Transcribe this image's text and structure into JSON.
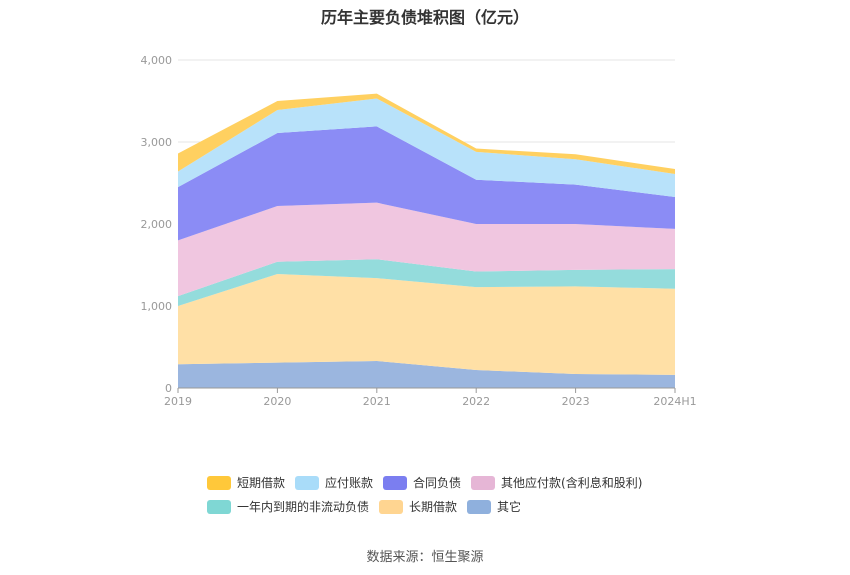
{
  "chart_data": {
    "type": "area",
    "stacked": true,
    "title": "历年主要负债堆积图（亿元）",
    "categories": [
      "2019",
      "2020",
      "2021",
      "2022",
      "2023",
      "2024H1"
    ],
    "y_ticks": [
      "0",
      "1,000",
      "2,000",
      "3,000",
      "4,000"
    ],
    "ylim": [
      0,
      4000
    ],
    "grid": true,
    "legend_position": "bottom",
    "series": [
      {
        "name": "其它",
        "color": "#9bb6df",
        "values": [
          290,
          310,
          330,
          220,
          170,
          160
        ]
      },
      {
        "name": "长期借款",
        "color": "#ffe0a6",
        "values": [
          710,
          1080,
          1010,
          1010,
          1070,
          1050
        ]
      },
      {
        "name": "一年内到期的非流动负债",
        "color": "#94dcdc",
        "values": [
          120,
          150,
          230,
          190,
          200,
          240
        ]
      },
      {
        "name": "其他应付款(含利息和股利)",
        "color": "#f0c6e0",
        "values": [
          680,
          680,
          690,
          580,
          560,
          490
        ]
      },
      {
        "name": "合同负债",
        "color": "#8b8cf5",
        "values": [
          650,
          890,
          930,
          540,
          480,
          390
        ]
      },
      {
        "name": "应付账款",
        "color": "#b8e2fa",
        "values": [
          190,
          280,
          340,
          340,
          310,
          280
        ]
      },
      {
        "name": "短期借款",
        "color": "#ffd060",
        "values": [
          220,
          110,
          60,
          40,
          60,
          60
        ]
      }
    ]
  },
  "legend": {
    "row1": [
      {
        "label": "短期借款",
        "color": "#ffc83a"
      },
      {
        "label": "应付账款",
        "color": "#a9dcf9"
      },
      {
        "label": "合同负债",
        "color": "#7b7ef0"
      },
      {
        "label": "其他应付款(含利息和股利)",
        "color": "#e6b6d6"
      }
    ],
    "row2": [
      {
        "label": "一年内到期的非流动负债",
        "color": "#7fd7d4"
      },
      {
        "label": "长期借款",
        "color": "#ffd591"
      },
      {
        "label": "其它",
        "color": "#8fb0dd"
      }
    ]
  },
  "source": "数据来源：恒生聚源"
}
